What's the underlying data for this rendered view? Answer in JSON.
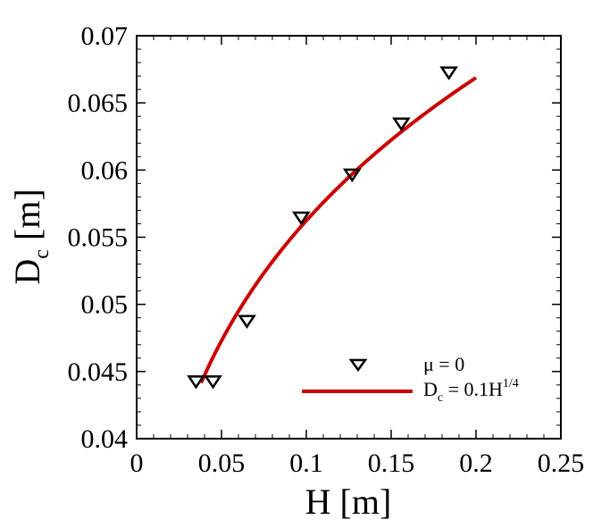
{
  "chart_data": {
    "type": "scatter",
    "xlabel": "H [m]",
    "ylabel_main": "D",
    "ylabel_sub": "c",
    "ylabel_unit": "[m]",
    "xlim": [
      0,
      0.25
    ],
    "ylim": [
      0.04,
      0.07
    ],
    "x_ticks": [
      0,
      0.05,
      0.1,
      0.15,
      0.2,
      0.25
    ],
    "x_tick_labels": [
      "0",
      "0.05",
      "0.1",
      "0.15",
      "0.2",
      "0.25"
    ],
    "y_ticks": [
      0.04,
      0.045,
      0.05,
      0.055,
      0.06,
      0.065,
      0.07
    ],
    "y_tick_labels": [
      "0.04",
      "0.045",
      "0.05",
      "0.055",
      "0.06",
      "0.065",
      "0.07"
    ],
    "grid": false,
    "legend_position": "bottom-right",
    "series": [
      {
        "name": "μ = 0",
        "kind": "markers",
        "marker": "triangle-down",
        "color": "#000000",
        "x": [
          0.035,
          0.045,
          0.065,
          0.097,
          0.127,
          0.156,
          0.184
        ],
        "y": [
          0.0443,
          0.0443,
          0.0488,
          0.0565,
          0.0597,
          0.0635,
          0.0673
        ]
      },
      {
        "kind": "curve",
        "color": "#cc0000",
        "formula": "0.1 * H^(1/4)",
        "x_range": [
          0.038,
          0.2
        ]
      }
    ],
    "legend": {
      "marker_label": "μ = 0",
      "curve_label_main": "D",
      "curve_label_sub": "c",
      "curve_label_eq": " = 0.1H",
      "curve_label_sup": "1/4"
    }
  }
}
